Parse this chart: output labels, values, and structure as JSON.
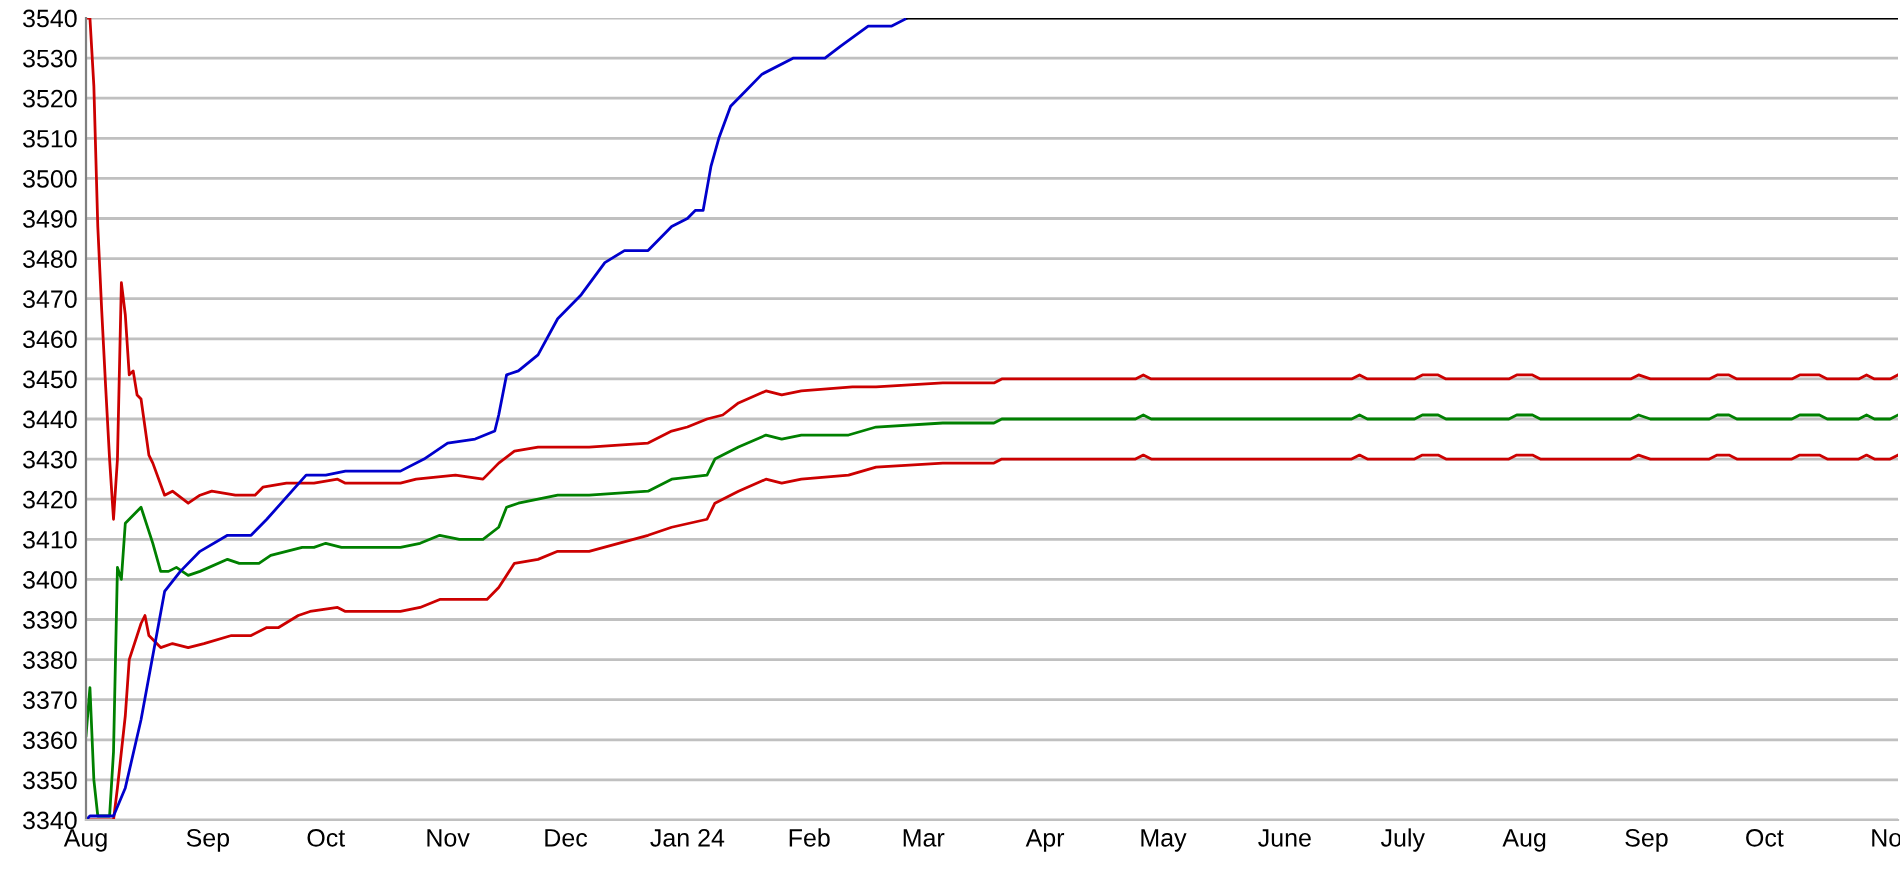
{
  "chart_data": {
    "type": "line",
    "xlim": [
      "2023-08-01",
      "2024-11-04"
    ],
    "xticks": [
      {
        "value": "2023-08-01",
        "label": "Aug"
      },
      {
        "value": "2023-09-01",
        "label": "Sep"
      },
      {
        "value": "2023-10-01",
        "label": "Oct"
      },
      {
        "value": "2023-11-01",
        "label": "Nov"
      },
      {
        "value": "2023-12-01",
        "label": "Dec"
      },
      {
        "value": "2024-01-01",
        "label": "Jan 24"
      },
      {
        "value": "2024-02-01",
        "label": "Feb"
      },
      {
        "value": "2024-03-01",
        "label": "Mar"
      },
      {
        "value": "2024-04-01",
        "label": "Apr"
      },
      {
        "value": "2024-05-01",
        "label": "May"
      },
      {
        "value": "2024-06-01",
        "label": "June"
      },
      {
        "value": "2024-07-01",
        "label": "July"
      },
      {
        "value": "2024-08-01",
        "label": "Aug"
      },
      {
        "value": "2024-09-01",
        "label": "Sep"
      },
      {
        "value": "2024-10-01",
        "label": "Oct"
      },
      {
        "value": "2024-11-01",
        "label": "No"
      }
    ],
    "ylim": [
      3340,
      3540
    ],
    "yticks": [
      3340,
      3350,
      3360,
      3370,
      3380,
      3390,
      3400,
      3410,
      3420,
      3430,
      3440,
      3450,
      3460,
      3470,
      3480,
      3490,
      3500,
      3510,
      3520,
      3530,
      3540
    ],
    "grid": "y",
    "series": [
      {
        "color": "#cc0000",
        "x": [
          "2023-08-01",
          "2023-08-02",
          "2023-08-03",
          "2023-08-04",
          "2023-08-05",
          "2023-08-06",
          "2023-08-07",
          "2023-08-08",
          "2023-08-09",
          "2023-08-10",
          "2023-08-11",
          "2023-08-12",
          "2023-08-13",
          "2023-08-14",
          "2023-08-15",
          "2023-08-17",
          "2023-08-18",
          "2023-08-21",
          "2023-08-23",
          "2023-08-27",
          "2023-08-30",
          "2023-09-02",
          "2023-09-08",
          "2023-09-13",
          "2023-09-15",
          "2023-09-21",
          "2023-09-28",
          "2023-10-04",
          "2023-10-06",
          "2023-10-20",
          "2023-10-24",
          "2023-11-03",
          "2023-11-10",
          "2023-11-14",
          "2023-11-18",
          "2023-11-24",
          "2023-12-07",
          "2023-12-22",
          "2023-12-28",
          "2024-01-01",
          "2024-01-06",
          "2024-01-10",
          "2024-01-14",
          "2024-01-21",
          "2024-01-25",
          "2024-01-30",
          "2024-02-12",
          "2024-02-18",
          "2024-03-06",
          "2024-03-19",
          "2024-03-21",
          "2024-04-24",
          "2024-04-26",
          "2024-04-28",
          "2024-06-18",
          "2024-06-20",
          "2024-06-22",
          "2024-07-04",
          "2024-07-06",
          "2024-07-10",
          "2024-07-12",
          "2024-07-28",
          "2024-07-30",
          "2024-08-03",
          "2024-08-05",
          "2024-08-28",
          "2024-08-30",
          "2024-09-02",
          "2024-09-17",
          "2024-09-19",
          "2024-09-22",
          "2024-09-24",
          "2024-10-08",
          "2024-10-10",
          "2024-10-15",
          "2024-10-17",
          "2024-10-25",
          "2024-10-27",
          "2024-10-29",
          "2024-11-02",
          "2024-11-04"
        ],
        "values": [
          3540,
          3540,
          3523,
          3488,
          3467,
          3448,
          3430,
          3415,
          3430,
          3474,
          3466,
          3451,
          3452,
          3446,
          3445,
          3431,
          3429,
          3421,
          3422,
          3419,
          3421,
          3422,
          3421,
          3421,
          3423,
          3424,
          3424,
          3425,
          3424,
          3424,
          3425,
          3426,
          3425,
          3429,
          3432,
          3433,
          3433,
          3434,
          3437,
          3438,
          3440,
          3441,
          3444,
          3447,
          3446,
          3447,
          3448,
          3448,
          3449,
          3449,
          3450,
          3450,
          3451,
          3450,
          3450,
          3451,
          3450,
          3450,
          3451,
          3451,
          3450,
          3450,
          3451,
          3451,
          3450,
          3450,
          3451,
          3450,
          3450,
          3451,
          3451,
          3450,
          3450,
          3451,
          3451,
          3450,
          3450,
          3451,
          3450,
          3450,
          3451
        ]
      },
      {
        "color": "#008000",
        "x": [
          "2023-08-01",
          "2023-08-02",
          "2023-08-03",
          "2023-08-04",
          "2023-08-07",
          "2023-08-08",
          "2023-08-09",
          "2023-08-10",
          "2023-08-11",
          "2023-08-12",
          "2023-08-15",
          "2023-08-18",
          "2023-08-20",
          "2023-08-22",
          "2023-08-24",
          "2023-08-27",
          "2023-08-30",
          "2023-09-06",
          "2023-09-09",
          "2023-09-14",
          "2023-09-17",
          "2023-09-21",
          "2023-09-25",
          "2023-09-28",
          "2023-10-01",
          "2023-10-05",
          "2023-10-20",
          "2023-10-25",
          "2023-10-30",
          "2023-11-04",
          "2023-11-10",
          "2023-11-14",
          "2023-11-16",
          "2023-11-19",
          "2023-11-29",
          "2023-12-07",
          "2023-12-22",
          "2023-12-28",
          "2024-01-06",
          "2024-01-08",
          "2024-01-14",
          "2024-01-21",
          "2024-01-25",
          "2024-01-30",
          "2024-02-11",
          "2024-02-18",
          "2024-03-06",
          "2024-03-19",
          "2024-03-21",
          "2024-04-24",
          "2024-04-26",
          "2024-04-28",
          "2024-06-18",
          "2024-06-20",
          "2024-06-22",
          "2024-07-04",
          "2024-07-06",
          "2024-07-10",
          "2024-07-12",
          "2024-07-28",
          "2024-07-30",
          "2024-08-03",
          "2024-08-05",
          "2024-08-28",
          "2024-08-30",
          "2024-09-02",
          "2024-09-17",
          "2024-09-19",
          "2024-09-22",
          "2024-09-24",
          "2024-10-08",
          "2024-10-10",
          "2024-10-15",
          "2024-10-17",
          "2024-10-25",
          "2024-10-27",
          "2024-10-29",
          "2024-11-02",
          "2024-11-04"
        ],
        "values": [
          3361,
          3373,
          3350,
          3341,
          3341,
          3357,
          3403,
          3400,
          3414,
          3415,
          3418,
          3409,
          3402,
          3402,
          3403,
          3401,
          3402,
          3405,
          3404,
          3404,
          3406,
          3407,
          3408,
          3408,
          3409,
          3408,
          3408,
          3409,
          3411,
          3410,
          3410,
          3413,
          3418,
          3419,
          3421,
          3421,
          3422,
          3425,
          3426,
          3430,
          3433,
          3436,
          3435,
          3436,
          3436,
          3438,
          3439,
          3439,
          3440,
          3440,
          3441,
          3440,
          3440,
          3441,
          3440,
          3440,
          3441,
          3441,
          3440,
          3440,
          3441,
          3441,
          3440,
          3440,
          3441,
          3440,
          3440,
          3441,
          3441,
          3440,
          3440,
          3441,
          3441,
          3440,
          3440,
          3441,
          3440,
          3440,
          3441
        ]
      },
      {
        "color": "#cc0000",
        "x": [
          "2023-08-01",
          "2023-08-08",
          "2023-08-09",
          "2023-08-11",
          "2023-08-12",
          "2023-08-15",
          "2023-08-16",
          "2023-08-17",
          "2023-08-20",
          "2023-08-23",
          "2023-08-27",
          "2023-08-31",
          "2023-09-07",
          "2023-09-12",
          "2023-09-16",
          "2023-09-19",
          "2023-09-24",
          "2023-09-27",
          "2023-10-04",
          "2023-10-06",
          "2023-10-20",
          "2023-10-25",
          "2023-10-30",
          "2023-11-06",
          "2023-11-11",
          "2023-11-14",
          "2023-11-18",
          "2023-11-24",
          "2023-11-29",
          "2023-12-07",
          "2023-12-22",
          "2023-12-28",
          "2024-01-06",
          "2024-01-08",
          "2024-01-14",
          "2024-01-21",
          "2024-01-25",
          "2024-01-30",
          "2024-02-11",
          "2024-02-18",
          "2024-03-06",
          "2024-03-19",
          "2024-03-21",
          "2024-04-24",
          "2024-04-26",
          "2024-04-28",
          "2024-06-18",
          "2024-06-20",
          "2024-06-22",
          "2024-07-04",
          "2024-07-06",
          "2024-07-10",
          "2024-07-12",
          "2024-07-28",
          "2024-07-30",
          "2024-08-03",
          "2024-08-05",
          "2024-08-28",
          "2024-08-30",
          "2024-09-02",
          "2024-09-17",
          "2024-09-19",
          "2024-09-22",
          "2024-09-24",
          "2024-10-08",
          "2024-10-10",
          "2024-10-15",
          "2024-10-17",
          "2024-10-25",
          "2024-10-27",
          "2024-10-29",
          "2024-11-02",
          "2024-11-04"
        ],
        "values": [
          3340,
          3340,
          3348,
          3366,
          3380,
          3389,
          3391,
          3386,
          3383,
          3384,
          3383,
          3384,
          3386,
          3386,
          3388,
          3388,
          3391,
          3392,
          3393,
          3392,
          3392,
          3393,
          3395,
          3395,
          3395,
          3398,
          3404,
          3405,
          3407,
          3407,
          3411,
          3413,
          3415,
          3419,
          3422,
          3425,
          3424,
          3425,
          3426,
          3428,
          3429,
          3429,
          3430,
          3430,
          3431,
          3430,
          3430,
          3431,
          3430,
          3430,
          3431,
          3431,
          3430,
          3430,
          3431,
          3431,
          3430,
          3430,
          3431,
          3430,
          3430,
          3431,
          3431,
          3430,
          3430,
          3431,
          3431,
          3430,
          3430,
          3431,
          3430,
          3430,
          3431
        ]
      },
      {
        "color": "#0000cc",
        "x": [
          "2023-08-01",
          "2023-08-02",
          "2023-08-08",
          "2023-08-11",
          "2023-08-15",
          "2023-08-21",
          "2023-08-25",
          "2023-08-30",
          "2023-09-06",
          "2023-09-12",
          "2023-09-16",
          "2023-09-26",
          "2023-10-01",
          "2023-10-06",
          "2023-10-20",
          "2023-10-26",
          "2023-11-01",
          "2023-11-08",
          "2023-11-13",
          "2023-11-14",
          "2023-11-16",
          "2023-11-19",
          "2023-11-24",
          "2023-11-29",
          "2023-12-05",
          "2023-12-11",
          "2023-12-16",
          "2023-12-22",
          "2023-12-28",
          "2024-01-01",
          "2024-01-03",
          "2024-01-05",
          "2024-01-07",
          "2024-01-09",
          "2024-01-12",
          "2024-01-16",
          "2024-01-20",
          "2024-01-28",
          "2024-02-05",
          "2024-02-09",
          "2024-02-16",
          "2024-02-22",
          "2024-02-26"
        ],
        "values": [
          3340,
          3341,
          3341,
          3348,
          3365,
          3397,
          3402,
          3407,
          3411,
          3411,
          3415,
          3426,
          3426,
          3427,
          3427,
          3430,
          3434,
          3435,
          3437,
          3441,
          3451,
          3452,
          3456,
          3465,
          3471,
          3479,
          3482,
          3482,
          3488,
          3490,
          3492,
          3492,
          3503,
          3510,
          3518,
          3522,
          3526,
          3530,
          3530,
          3533,
          3538,
          3538,
          3540
        ]
      },
      {
        "color": "#000000",
        "x": [
          "2024-02-26",
          "2024-11-04"
        ],
        "values": [
          3540,
          3540
        ]
      }
    ]
  }
}
